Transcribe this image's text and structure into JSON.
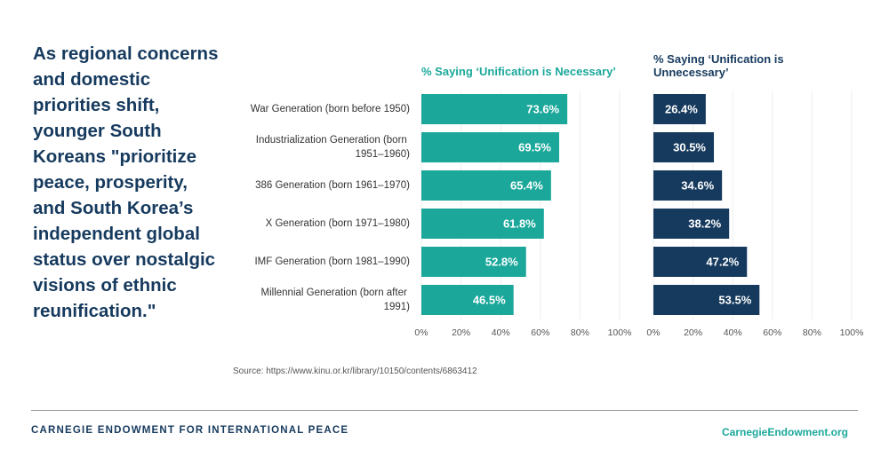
{
  "quote": "As regional concerns and domestic priorities shift, younger South Koreans \"prioritize peace, prosperity, and South Korea’s independent global status over nostalgic visions of ethnic reunification.\"",
  "chart_data": [
    {
      "type": "bar",
      "orientation": "horizontal",
      "title": "% Saying ‘Unification is Necessary’",
      "categories": [
        "War Generation (born before 1950)",
        "Industrialization Generation (born 1951–1960)",
        "386 Generation (born 1961–1970)",
        "X Generation (born 1971–1980)",
        "IMF Generation (born 1981–1990)",
        "Millennial Generation (born after 1991)"
      ],
      "values": [
        73.6,
        69.5,
        65.4,
        61.8,
        52.8,
        46.5
      ],
      "value_labels": [
        "73.6%",
        "69.5%",
        "65.4%",
        "61.8%",
        "52.8%",
        "46.5%"
      ],
      "color": "#1ba89b",
      "xlim": [
        0,
        100
      ],
      "xticks": [
        {
          "value": 0,
          "label": "0%"
        },
        {
          "value": 20,
          "label": "20%"
        },
        {
          "value": 40,
          "label": "40%"
        },
        {
          "value": 60,
          "label": "60%"
        },
        {
          "value": 80,
          "label": "80%"
        },
        {
          "value": 100,
          "label": "100%"
        }
      ],
      "grid": true
    },
    {
      "type": "bar",
      "orientation": "horizontal",
      "title": "% Saying ‘Unification is Unnecessary’",
      "values": [
        26.4,
        30.5,
        34.6,
        38.2,
        47.2,
        53.5
      ],
      "value_labels": [
        "26.4%",
        "30.5%",
        "34.6%",
        "38.2%",
        "47.2%",
        "53.5%"
      ],
      "color": "#163a5e",
      "xlim": [
        0,
        100
      ],
      "xticks": [
        {
          "value": 0,
          "label": "0%"
        },
        {
          "value": 20,
          "label": "20%"
        },
        {
          "value": 40,
          "label": "40%"
        },
        {
          "value": 60,
          "label": "60%"
        },
        {
          "value": 80,
          "label": "80%"
        },
        {
          "value": 100,
          "label": "100%"
        }
      ],
      "grid": true
    }
  ],
  "source": "Source: https://www.kinu.or.kr/library/10150/contents/6863412",
  "footer": {
    "organization": "CARNEGIE ENDOWMENT FOR INTERNATIONAL PEACE",
    "website": "CarnegieEndowment.org"
  }
}
